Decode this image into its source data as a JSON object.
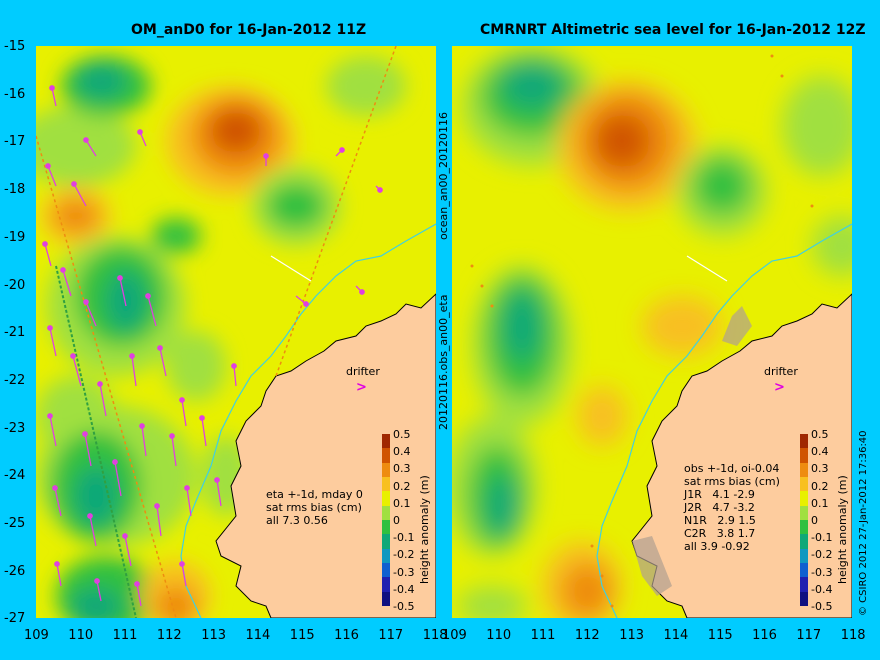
{
  "left_panel": {
    "title": "OM_anD0 for 16-Jan-2012 11Z",
    "annotation": "eta +-1d, mday 0\nsat rms bias (cm)\nall 7.3 0.56",
    "drifter_label": "drifter"
  },
  "right_panel": {
    "title": "CMRNRT Altimetric sea level  for 16-Jan-2012 12Z",
    "annotation": "obs +-1d, oi-0.04\nsat rms bias (cm)\nJ1R   4.1 -2.9\nJ2R   4.7 -3.2\nN1R   2.9 1.5\nC2R   3.8 1.7\nall 3.9 -0.92",
    "drifter_label": "drifter"
  },
  "middle_label_top": "ocean_an00_20120116",
  "middle_label_bottom": "20120116.obs_an00_eta",
  "credit": "© CSIRO 2012  27-Jan-2012 17:36:40",
  "y_ticks": [
    "-15",
    "-16",
    "-17",
    "-18",
    "-19",
    "-20",
    "-21",
    "-22",
    "-23",
    "-24",
    "-25",
    "-26",
    "-27"
  ],
  "x_ticks": [
    "109",
    "110",
    "111",
    "112",
    "113",
    "114",
    "115",
    "116",
    "117",
    "118"
  ],
  "colorbar": {
    "title": "height anomaly (m)",
    "labels": [
      "0.5",
      "0.4",
      "0.3",
      "0.2",
      "0.1",
      "0",
      "-0.1",
      "-0.2",
      "-0.3",
      "-0.4",
      "-0.5"
    ],
    "colors": [
      "#a02800",
      "#d05400",
      "#ee8c10",
      "#f8c020",
      "#e8f000",
      "#a0e040",
      "#30c040",
      "#10a878",
      "#1098c0",
      "#1060d0",
      "#2020b0",
      "#101080"
    ]
  },
  "colors": {
    "background": "#00ccff",
    "land": "#fdcc9e",
    "arrows": "#e040e0",
    "coast_line": "#40d0e0"
  }
}
